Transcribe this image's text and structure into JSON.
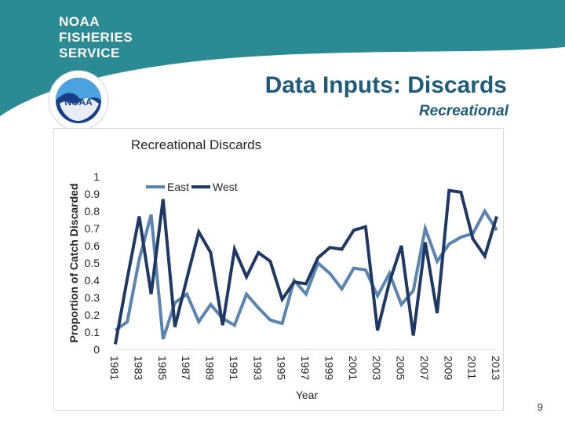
{
  "header": {
    "brand_lines": [
      "NOAA",
      "FISHERIES",
      "SERVICE"
    ],
    "logo_icon": "noaa-logo-icon",
    "logo_text": "NOAA",
    "title": "Data Inputs: Discards",
    "subtitle": "Recreational"
  },
  "page_number": "9",
  "colors": {
    "banner": "#2c8a95",
    "title": "#1f5c7a",
    "east": "#5b84b1",
    "west": "#1f3864"
  },
  "chart_data": {
    "type": "line",
    "title": "Recreational Discards",
    "xlabel": "Year",
    "ylabel": "Proportion of Catch Discarded",
    "ylim": [
      0,
      1
    ],
    "yticks": [
      "0",
      "0.1",
      "0.2",
      "0.3",
      "0.4",
      "0.5",
      "0.6",
      "0.7",
      "0.8",
      "0.9",
      "1"
    ],
    "xtick_labels": [
      "1981",
      "1983",
      "1985",
      "1987",
      "1989",
      "1991",
      "1993",
      "1995",
      "1997",
      "1999",
      "2001",
      "2003",
      "2005",
      "2007",
      "2009",
      "2011",
      "2013"
    ],
    "x": [
      1981,
      1982,
      1983,
      1984,
      1985,
      1986,
      1987,
      1988,
      1989,
      1990,
      1991,
      1992,
      1993,
      1994,
      1995,
      1996,
      1997,
      1998,
      1999,
      2000,
      2001,
      2002,
      2003,
      2004,
      2005,
      2006,
      2007,
      2008,
      2009,
      2010,
      2011,
      2012,
      2013
    ],
    "legend_position": "top-left",
    "grid": false,
    "series": [
      {
        "name": "East",
        "values": [
          0.11,
          0.16,
          0.52,
          0.78,
          0.06,
          0.27,
          0.32,
          0.16,
          0.26,
          0.18,
          0.14,
          0.32,
          0.24,
          0.17,
          0.15,
          0.4,
          0.32,
          0.5,
          0.44,
          0.35,
          0.47,
          0.46,
          0.31,
          0.44,
          0.26,
          0.34,
          0.7,
          0.51,
          0.61,
          0.65,
          0.67,
          0.8,
          0.69
        ]
      },
      {
        "name": "West",
        "values": [
          0.03,
          0.41,
          0.77,
          0.32,
          0.87,
          0.13,
          0.41,
          0.68,
          0.56,
          0.14,
          0.58,
          0.42,
          0.56,
          0.51,
          0.29,
          0.39,
          0.38,
          0.53,
          0.59,
          0.58,
          0.69,
          0.71,
          0.11,
          0.39,
          0.6,
          0.08,
          0.62,
          0.21,
          0.92,
          0.91,
          0.64,
          0.54,
          0.77
        ]
      }
    ]
  }
}
